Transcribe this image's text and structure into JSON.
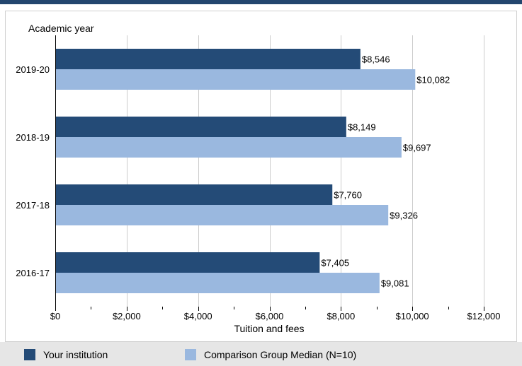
{
  "colors": {
    "top_bar": "#23466e",
    "institution": "#244b77",
    "comparison": "#9ab8df",
    "legend_band": "#e6e6e6"
  },
  "chart_data": {
    "type": "bar",
    "orientation": "horizontal",
    "title": "",
    "ylabel": "Academic year",
    "xlabel": "Tuition and fees",
    "categories": [
      "2019-20",
      "2018-19",
      "2017-18",
      "2016-17"
    ],
    "series": [
      {
        "name": "Your institution",
        "values": [
          8546,
          8149,
          7760,
          7405
        ],
        "labels": [
          "$8,546",
          "$8,149",
          "$7,760",
          "$7,405"
        ]
      },
      {
        "name": "Comparison Group Median (N=10)",
        "values": [
          10082,
          9697,
          9326,
          9081
        ],
        "labels": [
          "$10,082",
          "$9,697",
          "$9,326",
          "$9,081"
        ]
      }
    ],
    "xlim": [
      0,
      12000
    ],
    "xticks": [
      0,
      2000,
      4000,
      6000,
      8000,
      10000,
      12000
    ],
    "xtick_labels": [
      "$0",
      "$2,000",
      "$4,000",
      "$6,000",
      "$8,000",
      "$10,000",
      "$12,000"
    ],
    "grid": true,
    "legend_position": "bottom"
  }
}
